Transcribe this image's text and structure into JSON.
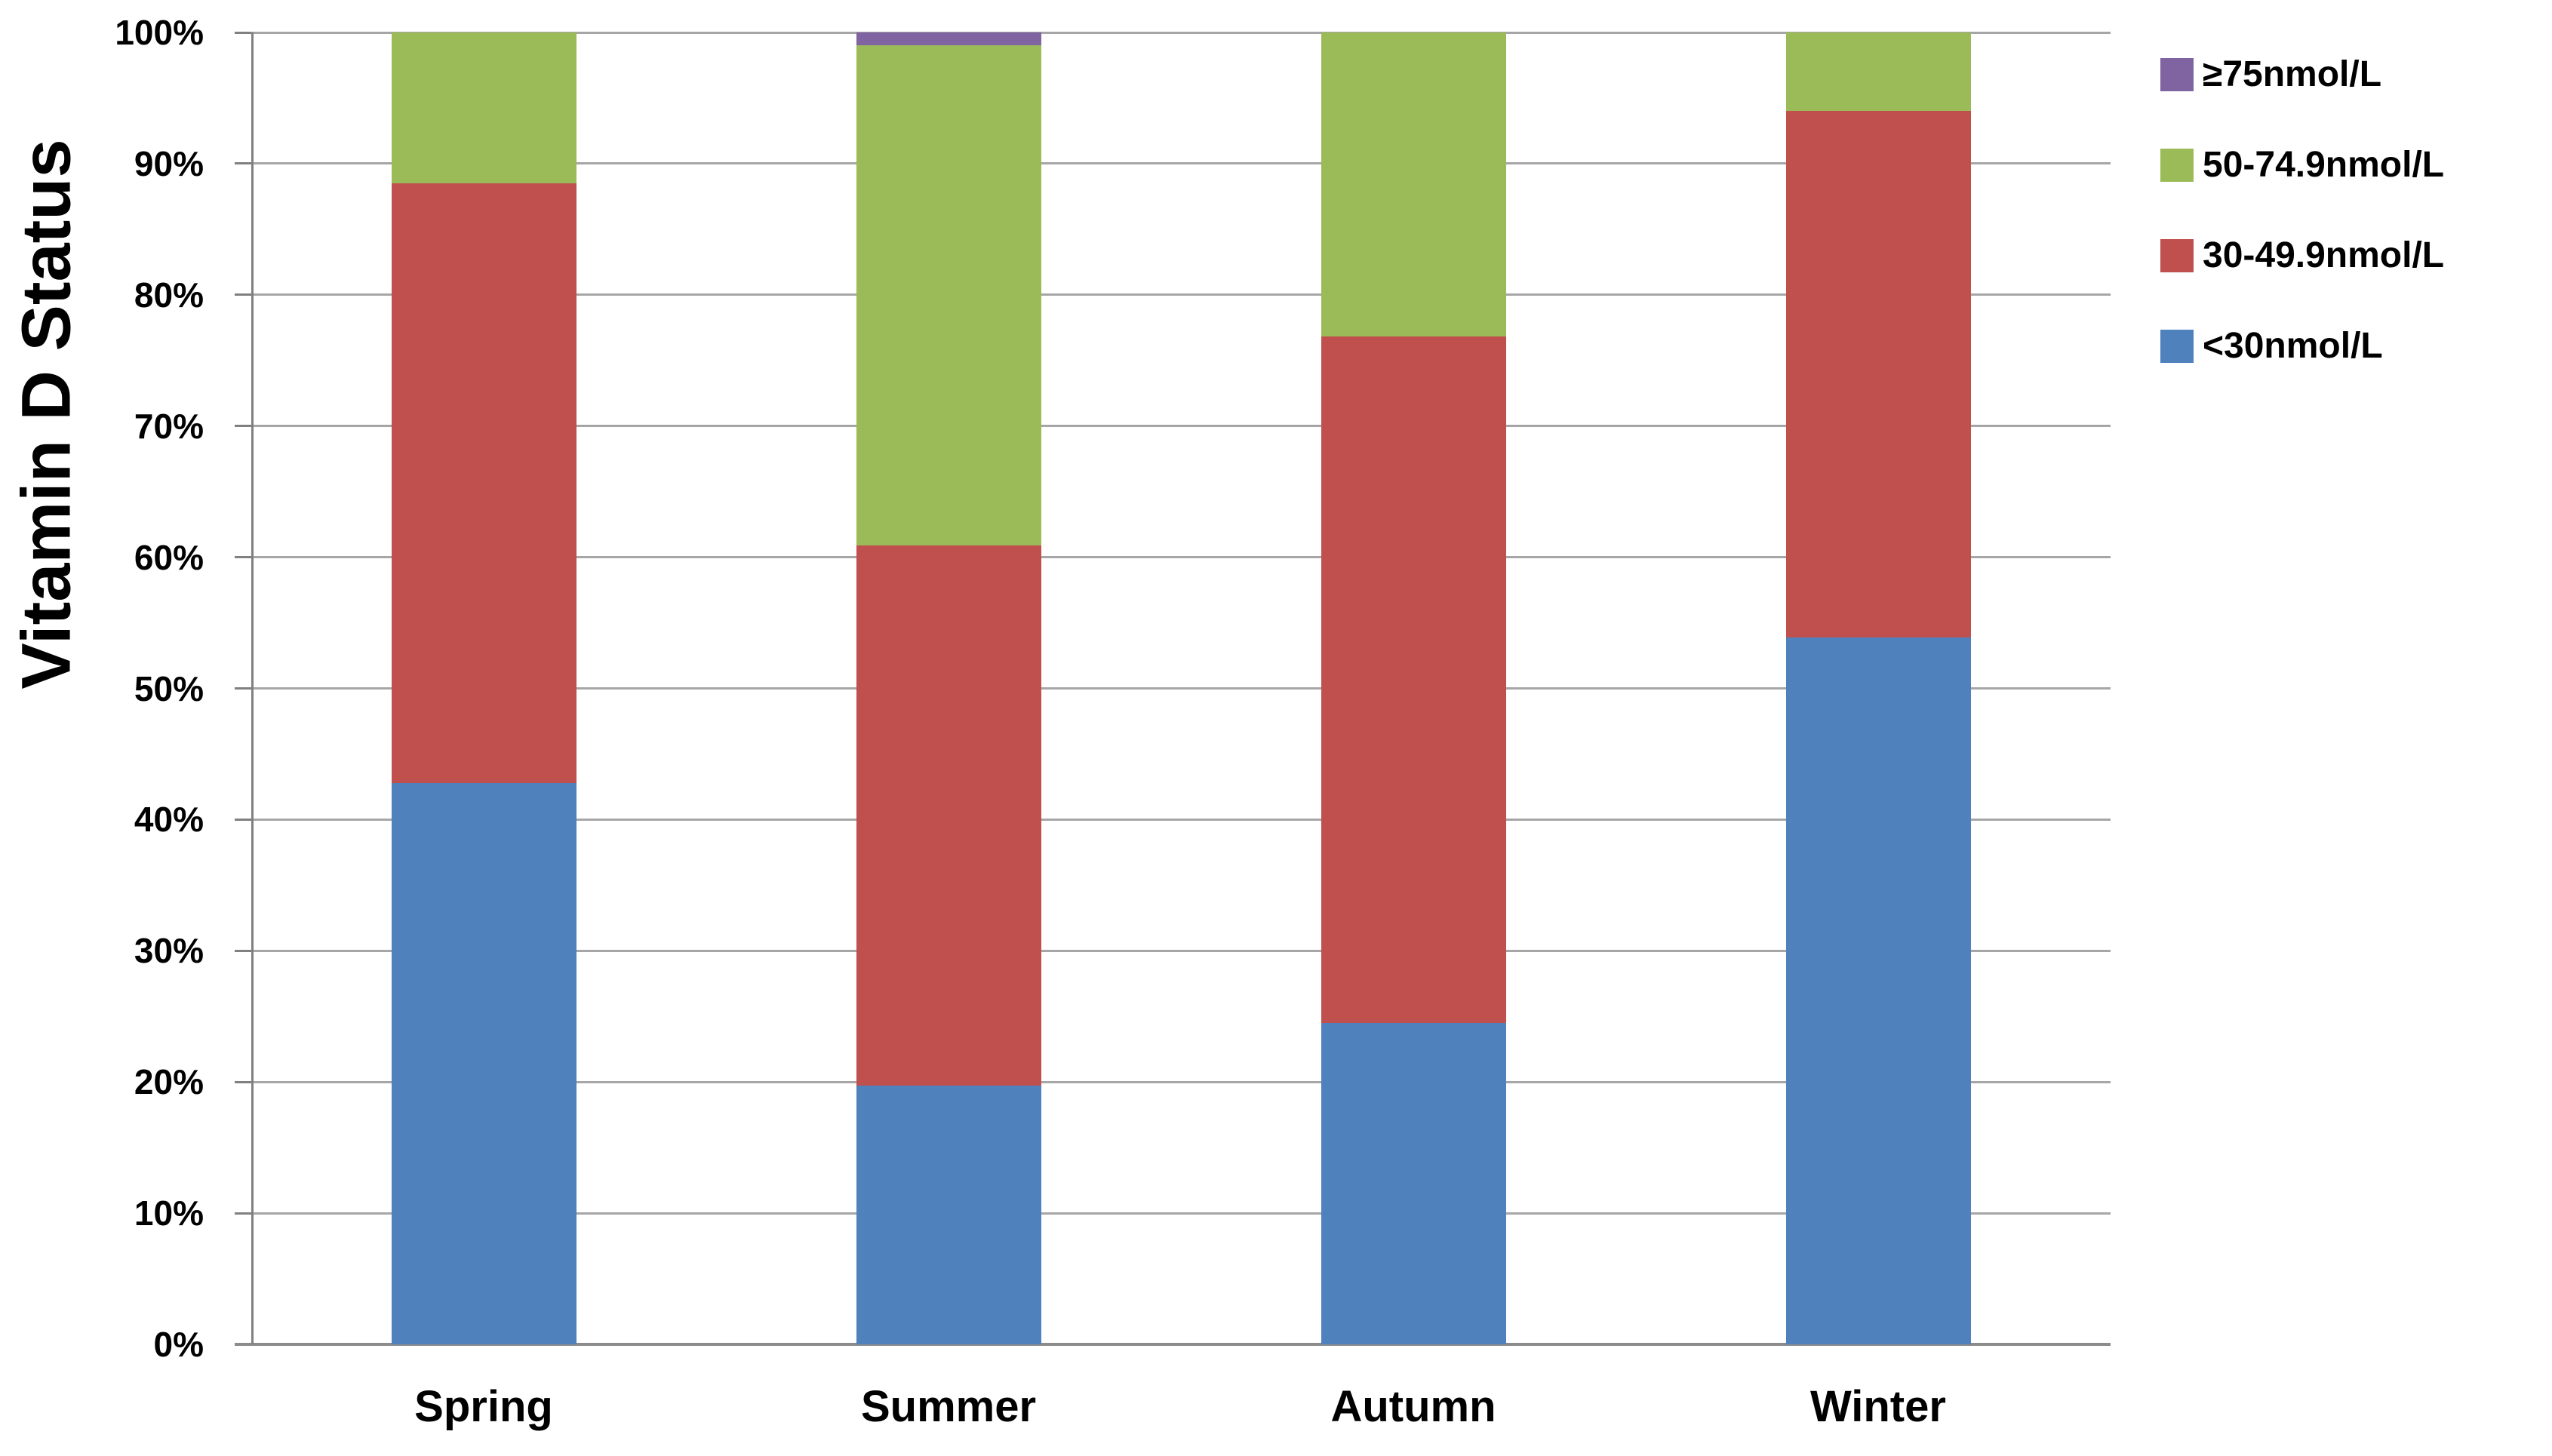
{
  "chart_data": {
    "type": "bar",
    "stacked": true,
    "percent_stacked": true,
    "title": "",
    "xlabel": "",
    "ylabel": "Vitamin D Status",
    "ylim": [
      0,
      100
    ],
    "ytick_step": 10,
    "ytick_labels": [
      "0%",
      "10%",
      "20%",
      "30%",
      "40%",
      "50%",
      "60%",
      "70%",
      "80%",
      "90%",
      "100%"
    ],
    "grid": true,
    "categories": [
      "Spring",
      "Summer",
      "Autumn",
      "Winter"
    ],
    "series": [
      {
        "name": "<30nmol/L",
        "color": "#4F81BD",
        "values": [
          42.8,
          19.7,
          24.5,
          53.9
        ]
      },
      {
        "name": "30-49.9nmol/L",
        "color": "#C0504D",
        "values": [
          45.7,
          41.2,
          52.3,
          40.1
        ]
      },
      {
        "name": "50-74.9nmol/L",
        "color": "#9BBB59",
        "values": [
          11.5,
          38.1,
          23.2,
          6.0
        ]
      },
      {
        "name": "≥75nmol/L",
        "color": "#8064A2",
        "values": [
          0.0,
          1.0,
          0.0,
          0.0
        ]
      }
    ],
    "legend_position": "right",
    "legend_items_top_to_bottom": [
      {
        "label": "≥75nmol/L",
        "color": "#8064A2"
      },
      {
        "label": "50-74.9nmol/L",
        "color": "#9BBB59"
      },
      {
        "label": "30-49.9nmol/L",
        "color": "#C0504D"
      },
      {
        "label": "<30nmol/L",
        "color": "#4F81BD"
      }
    ],
    "colors": {
      "gridline": "#A6A6A6",
      "axis_line": "#808080",
      "background": "#FFFFFF",
      "text": "#000000"
    }
  }
}
